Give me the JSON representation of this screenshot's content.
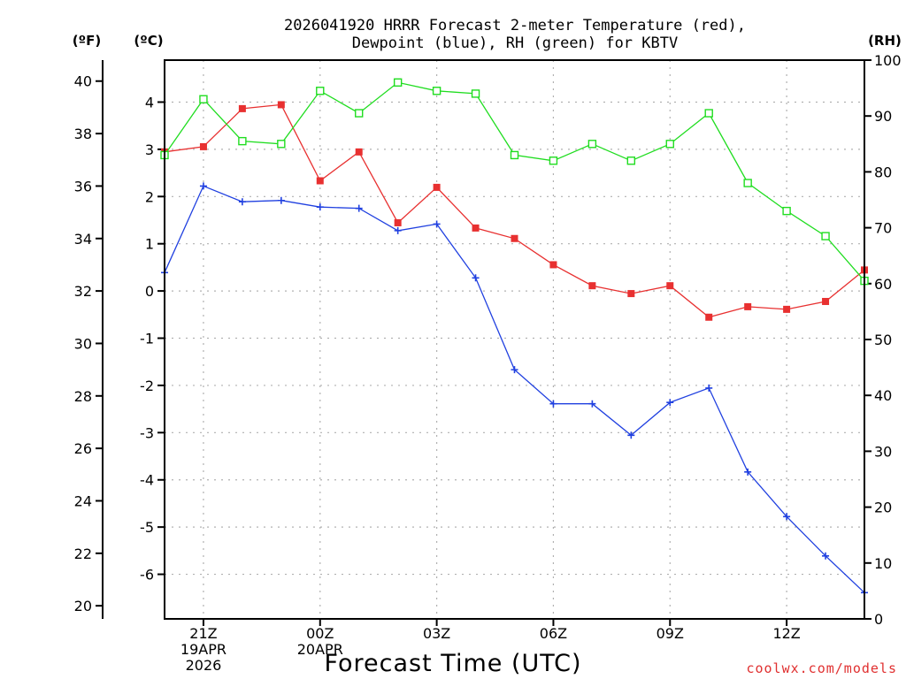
{
  "chart_data": {
    "type": "line",
    "title_line1": "2026041920 HRRR Forecast 2-meter Temperature (red),",
    "title_line2": "Dewpoint (blue), RH (green) for KBTV",
    "xlabel": "Forecast Time (UTC)",
    "credit": "coolwx.com/models",
    "units": {
      "fahrenheit": "(ºF)",
      "celsius": "(ºC)",
      "rh": "(RH)"
    },
    "x_hours": [
      0,
      1,
      2,
      3,
      4,
      5,
      6,
      7,
      8,
      9,
      10,
      11,
      12,
      13,
      14,
      15,
      16,
      17,
      18
    ],
    "x_ticks": [
      {
        "hour": 1,
        "lines": [
          "21Z",
          "19APR",
          "2026"
        ]
      },
      {
        "hour": 4,
        "lines": [
          "00Z",
          "20APR"
        ]
      },
      {
        "hour": 7,
        "lines": [
          "03Z"
        ]
      },
      {
        "hour": 10,
        "lines": [
          "06Z"
        ]
      },
      {
        "hour": 13,
        "lines": [
          "09Z"
        ]
      },
      {
        "hour": 16,
        "lines": [
          "12Z"
        ]
      }
    ],
    "y_fahrenheit": {
      "range": [
        19.5,
        40.8
      ],
      "ticks": [
        20,
        22,
        24,
        26,
        28,
        30,
        32,
        34,
        36,
        38,
        40
      ]
    },
    "y_celsius": {
      "ticks": [
        4,
        3,
        2,
        1,
        0,
        -1,
        -2,
        -3,
        -4,
        -5,
        -6
      ]
    },
    "y_rh": {
      "range": [
        0,
        100
      ],
      "ticks": [
        0,
        10,
        20,
        30,
        40,
        50,
        60,
        70,
        80,
        90,
        100
      ]
    },
    "series": [
      {
        "name": "Temperature",
        "unit": "F",
        "color": "#e83030",
        "marker": "filled-square",
        "values": [
          37.3,
          37.5,
          38.95,
          39.1,
          36.2,
          37.3,
          34.6,
          35.95,
          34.4,
          34.0,
          33.0,
          32.2,
          31.9,
          32.2,
          31.0,
          31.4,
          31.3,
          31.6,
          32.8
        ]
      },
      {
        "name": "Dewpoint",
        "unit": "F",
        "color": "#2040e0",
        "marker": "plus",
        "values": [
          32.7,
          36.0,
          35.4,
          35.45,
          35.2,
          35.15,
          34.3,
          34.55,
          32.5,
          29.0,
          27.7,
          27.7,
          26.5,
          27.75,
          28.3,
          25.1,
          23.4,
          21.9,
          20.5
        ]
      },
      {
        "name": "RH",
        "unit": "%",
        "color": "#20dd20",
        "marker": "open-square",
        "values": [
          83,
          93,
          85.5,
          85,
          94.5,
          90.5,
          96,
          94.5,
          94,
          83,
          82,
          85,
          82,
          85,
          90.5,
          78,
          73,
          68.5,
          60.5
        ]
      }
    ]
  }
}
